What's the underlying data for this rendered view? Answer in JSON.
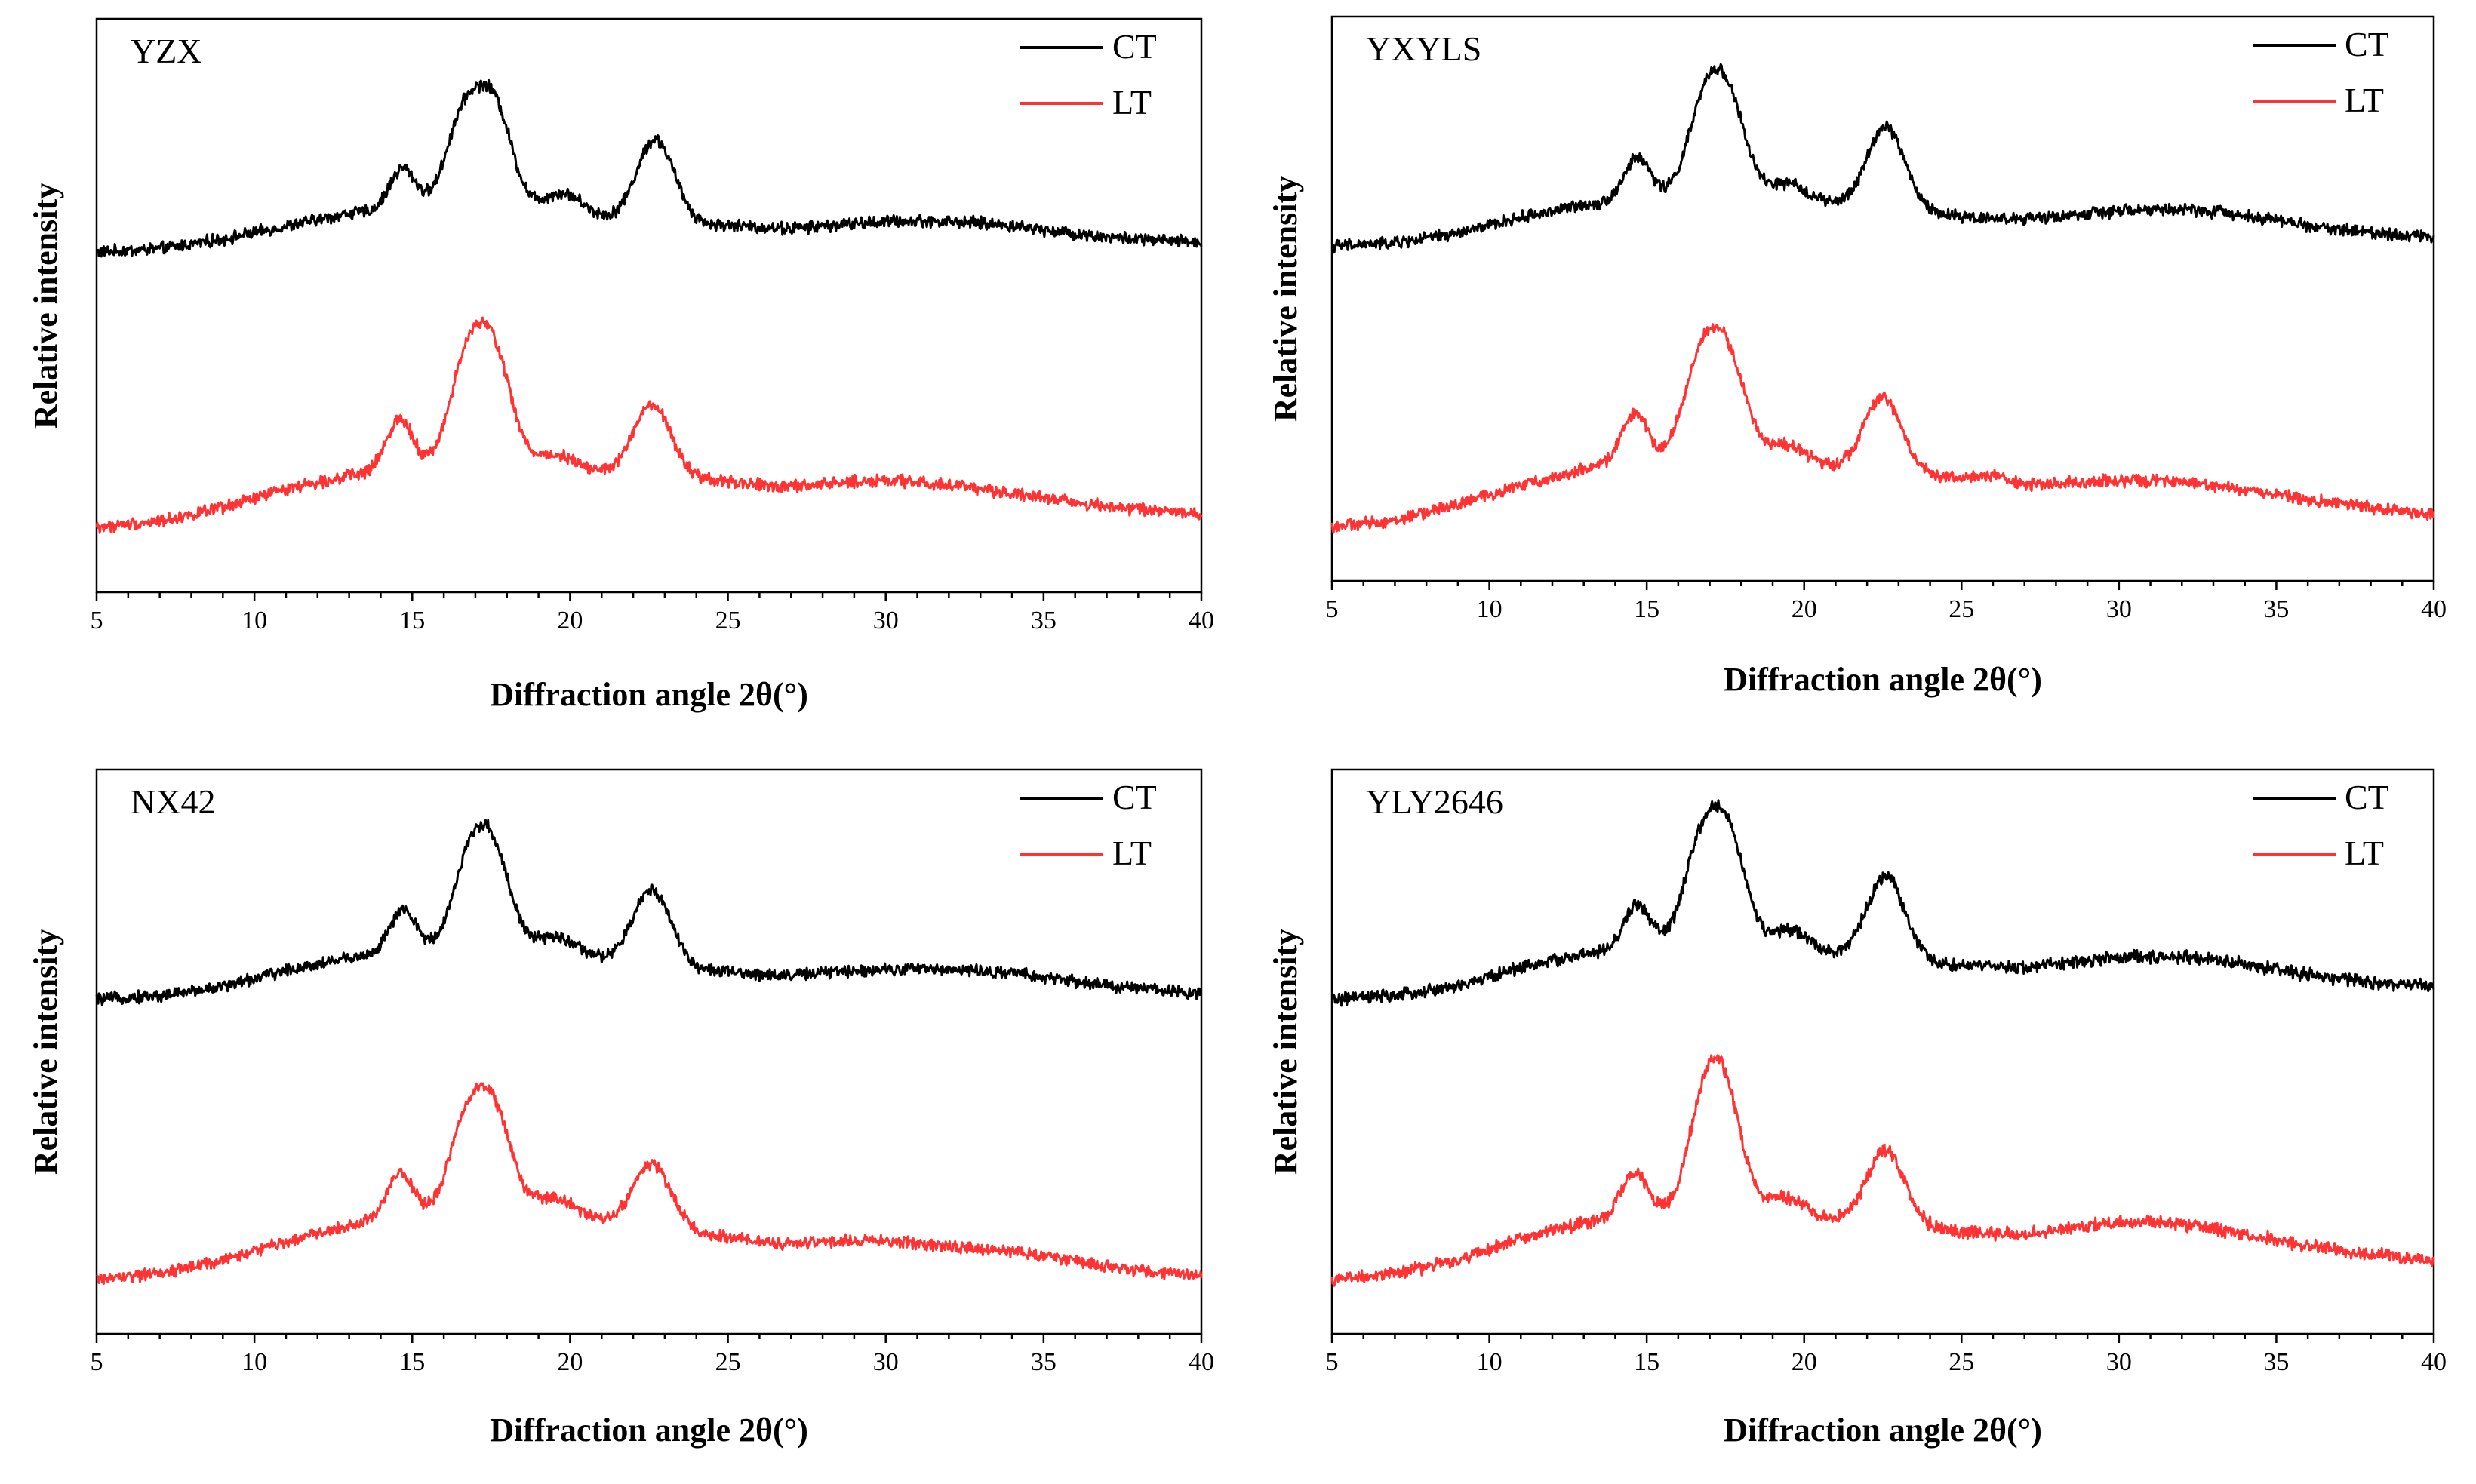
{
  "chart_data": [
    {
      "type": "line",
      "panel_label": "YZX",
      "xlabel": "Diffraction angle 2θ(°)",
      "ylabel": "Relative intensity",
      "xlim": [
        5,
        40
      ],
      "xticks": [
        5,
        10,
        15,
        20,
        25,
        30,
        35,
        40
      ],
      "yticks_shown": false,
      "legend_position": "top-right",
      "series": [
        {
          "name": "CT",
          "color": "#000000",
          "offset": 1.0,
          "noise": 0.015,
          "peaks": [
            [
              14.7,
              0.13,
              0.42
            ],
            [
              16.6,
              0.27,
              0.55
            ],
            [
              17.6,
              0.3,
              0.55
            ],
            [
              19.8,
              0.06,
              0.6
            ],
            [
              22.7,
              0.26,
              0.6
            ],
            [
              30.2,
              0.03,
              2.5
            ],
            [
              33.5,
              0.02,
              2.0
            ]
          ],
          "points": [
            [
              5,
              1.0
            ],
            [
              7,
              1.01
            ],
            [
              9,
              1.04
            ],
            [
              11,
              1.08
            ],
            [
              13,
              1.12
            ],
            [
              15,
              1.13
            ],
            [
              18,
              1.14
            ],
            [
              20,
              1.12
            ],
            [
              22,
              1.09
            ],
            [
              25,
              1.08
            ],
            [
              27,
              1.06
            ],
            [
              30,
              1.06
            ],
            [
              35,
              1.05
            ],
            [
              40,
              1.03
            ]
          ]
        },
        {
          "name": "LT",
          "color": "#ff3333",
          "offset": 0.15,
          "noise": 0.015,
          "peaks": [
            [
              14.6,
              0.16,
              0.42
            ],
            [
              16.7,
              0.3,
              0.55
            ],
            [
              17.6,
              0.32,
              0.55
            ],
            [
              19.6,
              0.05,
              0.7
            ],
            [
              22.6,
              0.22,
              0.6
            ],
            [
              29.8,
              0.04,
              2.0
            ],
            [
              33.0,
              0.02,
              1.8
            ]
          ],
          "points": [
            [
              5,
              0.15
            ],
            [
              7,
              0.17
            ],
            [
              9,
              0.21
            ],
            [
              11,
              0.27
            ],
            [
              13,
              0.31
            ],
            [
              15,
              0.33
            ],
            [
              18,
              0.34
            ],
            [
              20,
              0.32
            ],
            [
              22,
              0.31
            ],
            [
              25,
              0.29
            ],
            [
              27,
              0.26
            ],
            [
              30,
              0.25
            ],
            [
              35,
              0.23
            ],
            [
              40,
              0.19
            ]
          ]
        }
      ]
    },
    {
      "type": "line",
      "panel_label": "YXYLS",
      "xlabel": "Diffraction angle 2θ(°)",
      "ylabel": "Relative intensity",
      "xlim": [
        5,
        40
      ],
      "xticks": [
        5,
        10,
        15,
        20,
        25,
        30,
        35,
        40
      ],
      "yticks_shown": false,
      "legend_position": "top-right",
      "series": [
        {
          "name": "CT",
          "color": "#000000",
          "offset": 1.0,
          "noise": 0.015,
          "peaks": [
            [
              14.7,
              0.13,
              0.42
            ],
            [
              16.8,
              0.25,
              0.55
            ],
            [
              17.6,
              0.27,
              0.55
            ],
            [
              19.5,
              0.05,
              0.6
            ],
            [
              22.6,
              0.26,
              0.6
            ],
            [
              30.0,
              0.03,
              2.5
            ],
            [
              33.0,
              0.03,
              2.0
            ]
          ],
          "points": [
            [
              5,
              1.0
            ],
            [
              7,
              1.01
            ],
            [
              9,
              1.04
            ],
            [
              11,
              1.09
            ],
            [
              13,
              1.13
            ],
            [
              15,
              1.15
            ],
            [
              18,
              1.16
            ],
            [
              20,
              1.14
            ],
            [
              22,
              1.12
            ],
            [
              25,
              1.09
            ],
            [
              27,
              1.07
            ],
            [
              30,
              1.07
            ],
            [
              35,
              1.06
            ],
            [
              40,
              1.03
            ]
          ]
        },
        {
          "name": "LT",
          "color": "#ff3333",
          "offset": 0.12,
          "noise": 0.015,
          "peaks": [
            [
              14.6,
              0.15,
              0.42
            ],
            [
              16.7,
              0.29,
              0.55
            ],
            [
              17.6,
              0.29,
              0.55
            ],
            [
              19.4,
              0.06,
              0.7
            ],
            [
              22.5,
              0.23,
              0.6
            ],
            [
              26.0,
              0.02,
              0.5
            ],
            [
              30.0,
              0.03,
              2.0
            ],
            [
              33.0,
              0.02,
              1.8
            ]
          ],
          "points": [
            [
              5,
              0.12
            ],
            [
              7,
              0.14
            ],
            [
              9,
              0.19
            ],
            [
              11,
              0.25
            ],
            [
              13,
              0.3
            ],
            [
              15,
              0.33
            ],
            [
              18,
              0.33
            ],
            [
              20,
              0.31
            ],
            [
              22,
              0.3
            ],
            [
              25,
              0.27
            ],
            [
              27,
              0.24
            ],
            [
              30,
              0.23
            ],
            [
              35,
              0.21
            ],
            [
              40,
              0.16
            ]
          ]
        }
      ]
    },
    {
      "type": "line",
      "panel_label": "NX42",
      "xlabel": "Diffraction angle 2θ(°)",
      "ylabel": "Relative intensity",
      "xlim": [
        5,
        40
      ],
      "xticks": [
        5,
        10,
        15,
        20,
        25,
        30,
        35,
        40
      ],
      "yticks_shown": false,
      "legend_position": "top-right",
      "series": [
        {
          "name": "CT",
          "color": "#000000",
          "offset": 1.0,
          "noise": 0.015,
          "peaks": [
            [
              14.7,
              0.13,
              0.42
            ],
            [
              16.8,
              0.25,
              0.55
            ],
            [
              17.6,
              0.26,
              0.55
            ],
            [
              19.6,
              0.05,
              0.6
            ],
            [
              22.6,
              0.24,
              0.6
            ],
            [
              30.0,
              0.03,
              2.5
            ],
            [
              33.5,
              0.02,
              2.0
            ]
          ],
          "points": [
            [
              5,
              1.0
            ],
            [
              7,
              1.01
            ],
            [
              9,
              1.04
            ],
            [
              11,
              1.09
            ],
            [
              13,
              1.13
            ],
            [
              15,
              1.15
            ],
            [
              18,
              1.16
            ],
            [
              20,
              1.14
            ],
            [
              22,
              1.11
            ],
            [
              25,
              1.08
            ],
            [
              27,
              1.06
            ],
            [
              30,
              1.06
            ],
            [
              35,
              1.05
            ],
            [
              40,
              1.02
            ]
          ]
        },
        {
          "name": "LT",
          "color": "#ff3333",
          "offset": 0.12,
          "noise": 0.015,
          "peaks": [
            [
              14.6,
              0.14,
              0.42
            ],
            [
              16.7,
              0.27,
              0.55
            ],
            [
              17.6,
              0.29,
              0.55
            ],
            [
              19.5,
              0.06,
              0.7
            ],
            [
              22.6,
              0.2,
              0.6
            ],
            [
              29.5,
              0.03,
              1.8
            ],
            [
              33.5,
              0.02,
              1.8
            ]
          ],
          "points": [
            [
              5,
              0.12
            ],
            [
              7,
              0.14
            ],
            [
              9,
              0.18
            ],
            [
              11,
              0.24
            ],
            [
              13,
              0.29
            ],
            [
              15,
              0.32
            ],
            [
              18,
              0.33
            ],
            [
              20,
              0.31
            ],
            [
              22,
              0.29
            ],
            [
              25,
              0.25
            ],
            [
              27,
              0.22
            ],
            [
              30,
              0.21
            ],
            [
              35,
              0.18
            ],
            [
              40,
              0.13
            ]
          ]
        }
      ]
    },
    {
      "type": "line",
      "panel_label": "YLY2646",
      "xlabel": "Diffraction angle 2θ(°)",
      "ylabel": "Relative intensity",
      "xlim": [
        5,
        40
      ],
      "xticks": [
        5,
        10,
        15,
        20,
        25,
        30,
        35,
        40
      ],
      "yticks_shown": false,
      "legend_position": "top-right",
      "series": [
        {
          "name": "CT",
          "color": "#000000",
          "offset": 1.0,
          "noise": 0.016,
          "peaks": [
            [
              14.7,
              0.14,
              0.42
            ],
            [
              16.7,
              0.29,
              0.55
            ],
            [
              17.6,
              0.32,
              0.55
            ],
            [
              19.6,
              0.06,
              0.6
            ],
            [
              22.6,
              0.26,
              0.6
            ],
            [
              30.0,
              0.04,
              2.5
            ],
            [
              33.0,
              0.03,
              2.0
            ]
          ],
          "points": [
            [
              5,
              1.0
            ],
            [
              7,
              1.01
            ],
            [
              9,
              1.04
            ],
            [
              11,
              1.1
            ],
            [
              13,
              1.14
            ],
            [
              15,
              1.16
            ],
            [
              18,
              1.17
            ],
            [
              20,
              1.15
            ],
            [
              22,
              1.13
            ],
            [
              25,
              1.1
            ],
            [
              27,
              1.08
            ],
            [
              30,
              1.08
            ],
            [
              35,
              1.07
            ],
            [
              40,
              1.04
            ]
          ]
        },
        {
          "name": "LT",
          "color": "#ff3333",
          "offset": 0.12,
          "noise": 0.016,
          "peaks": [
            [
              14.6,
              0.14,
              0.42
            ],
            [
              16.8,
              0.29,
              0.55
            ],
            [
              17.5,
              0.31,
              0.55
            ],
            [
              19.4,
              0.06,
              0.7
            ],
            [
              22.6,
              0.23,
              0.6
            ],
            [
              30.0,
              0.04,
              2.0
            ],
            [
              32.8,
              0.03,
              1.8
            ]
          ],
          "points": [
            [
              5,
              0.12
            ],
            [
              7,
              0.14
            ],
            [
              9,
              0.18
            ],
            [
              11,
              0.25
            ],
            [
              13,
              0.3
            ],
            [
              15,
              0.32
            ],
            [
              18,
              0.33
            ],
            [
              20,
              0.31
            ],
            [
              22,
              0.3
            ],
            [
              25,
              0.27
            ],
            [
              27,
              0.25
            ],
            [
              30,
              0.25
            ],
            [
              35,
              0.23
            ],
            [
              40,
              0.18
            ]
          ]
        }
      ]
    }
  ]
}
